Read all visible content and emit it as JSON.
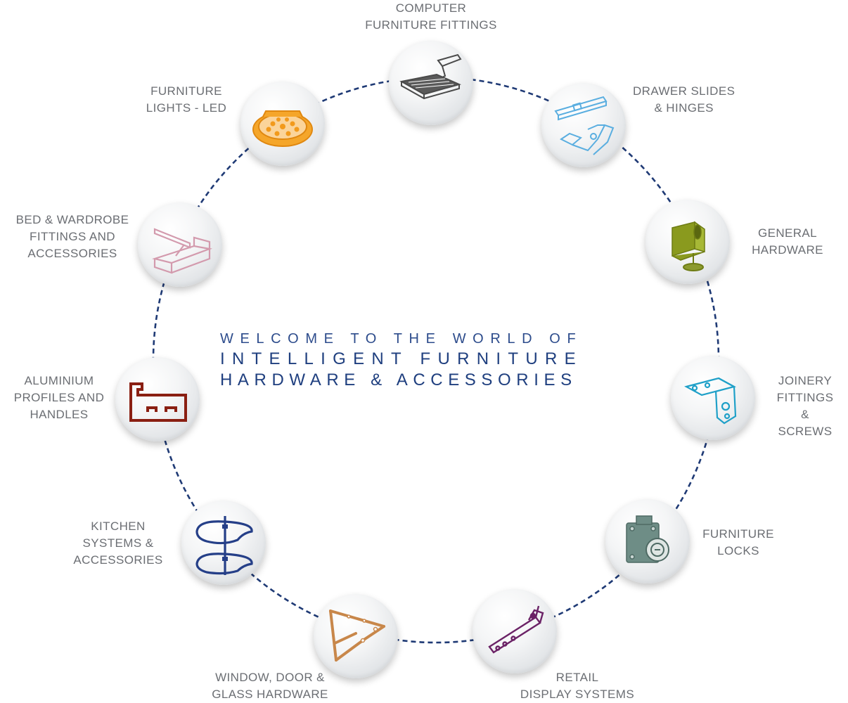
{
  "welcome": {
    "line1": "WELCOME TO THE WORLD OF",
    "line2": "INTELLIGENT FURNITURE",
    "line3": "HARDWARE & ACCESSORIES"
  },
  "categories": [
    {
      "label": "COMPUTER\nFURNITURE FITTINGS",
      "icon": "keyboard-tray-icon",
      "color": "#4a4a4a"
    },
    {
      "label": "DRAWER SLIDES\n& HINGES",
      "icon": "drawer-slide-hinge-icon",
      "color": "#5aaee0"
    },
    {
      "label": "GENERAL\nHARDWARE",
      "icon": "leveler-bracket-icon",
      "color": "#8a9a1e"
    },
    {
      "label": "JOINERY\nFITTINGS &\nSCREWS",
      "icon": "angle-bracket-icon",
      "color": "#1fa0c8"
    },
    {
      "label": "FURNITURE\nLOCKS",
      "icon": "lock-icon",
      "color": "#6e8d86"
    },
    {
      "label": "RETAIL\nDISPLAY SYSTEMS",
      "icon": "display-bracket-icon",
      "color": "#6b2266"
    },
    {
      "label": "WINDOW, DOOR &\nGLASS HARDWARE",
      "icon": "window-stay-icon",
      "color": "#c8874a"
    },
    {
      "label": "KITCHEN\nSYSTEMS &\nACCESSORIES",
      "icon": "carousel-shelf-icon",
      "color": "#253f88"
    },
    {
      "label": "ALUMINIUM\nPROFILES AND\nHANDLES",
      "icon": "aluminium-profile-icon",
      "color": "#8a1f12"
    },
    {
      "label": "BED & WARDROBE\nFITTINGS AND\nACCESSORIES",
      "icon": "bed-lift-icon",
      "color": "#d39aad"
    },
    {
      "label": "FURNITURE\nLIGHTS - LED",
      "icon": "led-light-icon",
      "color": "#f29a1c"
    }
  ],
  "ring_color": "#1f3a75"
}
